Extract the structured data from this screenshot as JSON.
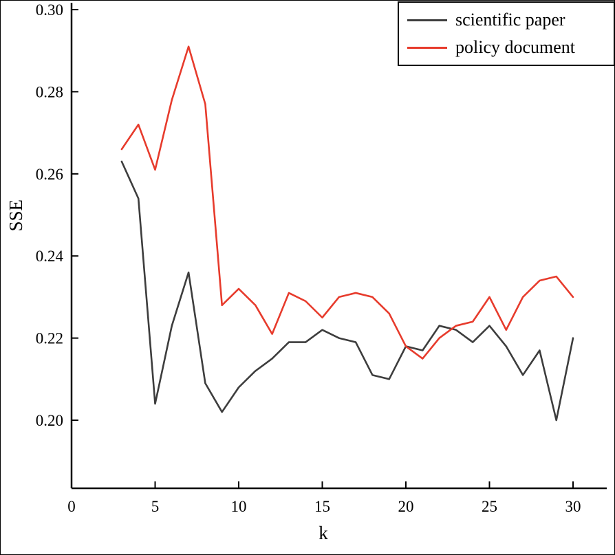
{
  "figure": {
    "background": "#ffffff"
  },
  "axes": {
    "x_label": "k",
    "y_label": "SSE",
    "x_ticks": [
      "0",
      "5",
      "10",
      "15",
      "20",
      "25",
      "30"
    ],
    "y_ticks": [
      "0.20",
      "0.22",
      "0.24",
      "0.26",
      "0.28",
      "0.30"
    ]
  },
  "legend": {
    "items": [
      {
        "label": "scientific paper",
        "color": "#3d3d3d"
      },
      {
        "label": "policy document",
        "color": "#e73b2c"
      }
    ]
  },
  "chart_data": {
    "type": "line",
    "title": "",
    "xlabel": "k",
    "ylabel": "SSE",
    "xlim": [
      0,
      31
    ],
    "ylim": [
      0.183,
      0.302
    ],
    "x_tick_values": [
      0,
      5,
      10,
      15,
      20,
      25,
      30
    ],
    "y_tick_values": [
      0.2,
      0.22,
      0.24,
      0.26,
      0.28,
      0.3
    ],
    "grid": false,
    "legend_position": "top-right",
    "x": [
      3,
      4,
      5,
      6,
      7,
      8,
      9,
      10,
      11,
      12,
      13,
      14,
      15,
      16,
      17,
      18,
      19,
      20,
      21,
      22,
      23,
      24,
      25,
      26,
      27,
      28,
      29,
      30
    ],
    "series": [
      {
        "name": "scientific paper",
        "color": "#3d3d3d",
        "values": [
          0.263,
          0.254,
          0.204,
          0.223,
          0.236,
          0.209,
          0.202,
          0.208,
          0.212,
          0.215,
          0.219,
          0.219,
          0.222,
          0.22,
          0.219,
          0.211,
          0.21,
          0.218,
          0.217,
          0.223,
          0.222,
          0.219,
          0.223,
          0.218,
          0.211,
          0.217,
          0.2,
          0.22
        ]
      },
      {
        "name": "policy document",
        "color": "#e73b2c",
        "values": [
          0.266,
          0.272,
          0.261,
          0.278,
          0.291,
          0.277,
          0.228,
          0.232,
          0.228,
          0.221,
          0.231,
          0.229,
          0.225,
          0.23,
          0.231,
          0.23,
          0.226,
          0.218,
          0.215,
          0.22,
          0.223,
          0.224,
          0.23,
          0.222,
          0.23,
          0.234,
          0.235,
          0.23
        ]
      }
    ]
  }
}
